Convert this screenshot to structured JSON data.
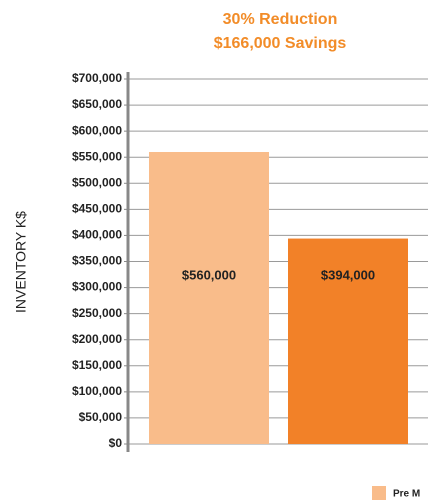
{
  "chart_data": {
    "type": "bar",
    "title": [
      "30% Reduction",
      "$166,000 Savings"
    ],
    "ylabel": "INVENTORY K$",
    "series": [
      {
        "name": "Pre M",
        "color": "#f9bc8a",
        "values": [
          560000
        ],
        "value_labels": [
          "$560,000"
        ]
      },
      {
        "color": "#f28128",
        "values": [
          394000
        ],
        "value_labels": [
          "$394,000"
        ]
      }
    ],
    "ylim": [
      0,
      700000
    ],
    "yticks": [
      {
        "value": 0,
        "label": "$0"
      },
      {
        "value": 50000,
        "label": "$50,000"
      },
      {
        "value": 100000,
        "label": "$100,000"
      },
      {
        "value": 150000,
        "label": "$150,000"
      },
      {
        "value": 200000,
        "label": "$200,000"
      },
      {
        "value": 250000,
        "label": "$250,000"
      },
      {
        "value": 300000,
        "label": "$300,000"
      },
      {
        "value": 350000,
        "label": "$350,000"
      },
      {
        "value": 400000,
        "label": "$400,000"
      },
      {
        "value": 450000,
        "label": "$450,000"
      },
      {
        "value": 500000,
        "label": "$500,000"
      },
      {
        "value": 550000,
        "label": "$550,000"
      },
      {
        "value": 600000,
        "label": "$600,000"
      },
      {
        "value": 650000,
        "label": "$650,000"
      },
      {
        "value": 700000,
        "label": "$700,000"
      }
    ],
    "grid": true,
    "legend": "bottom-right"
  }
}
